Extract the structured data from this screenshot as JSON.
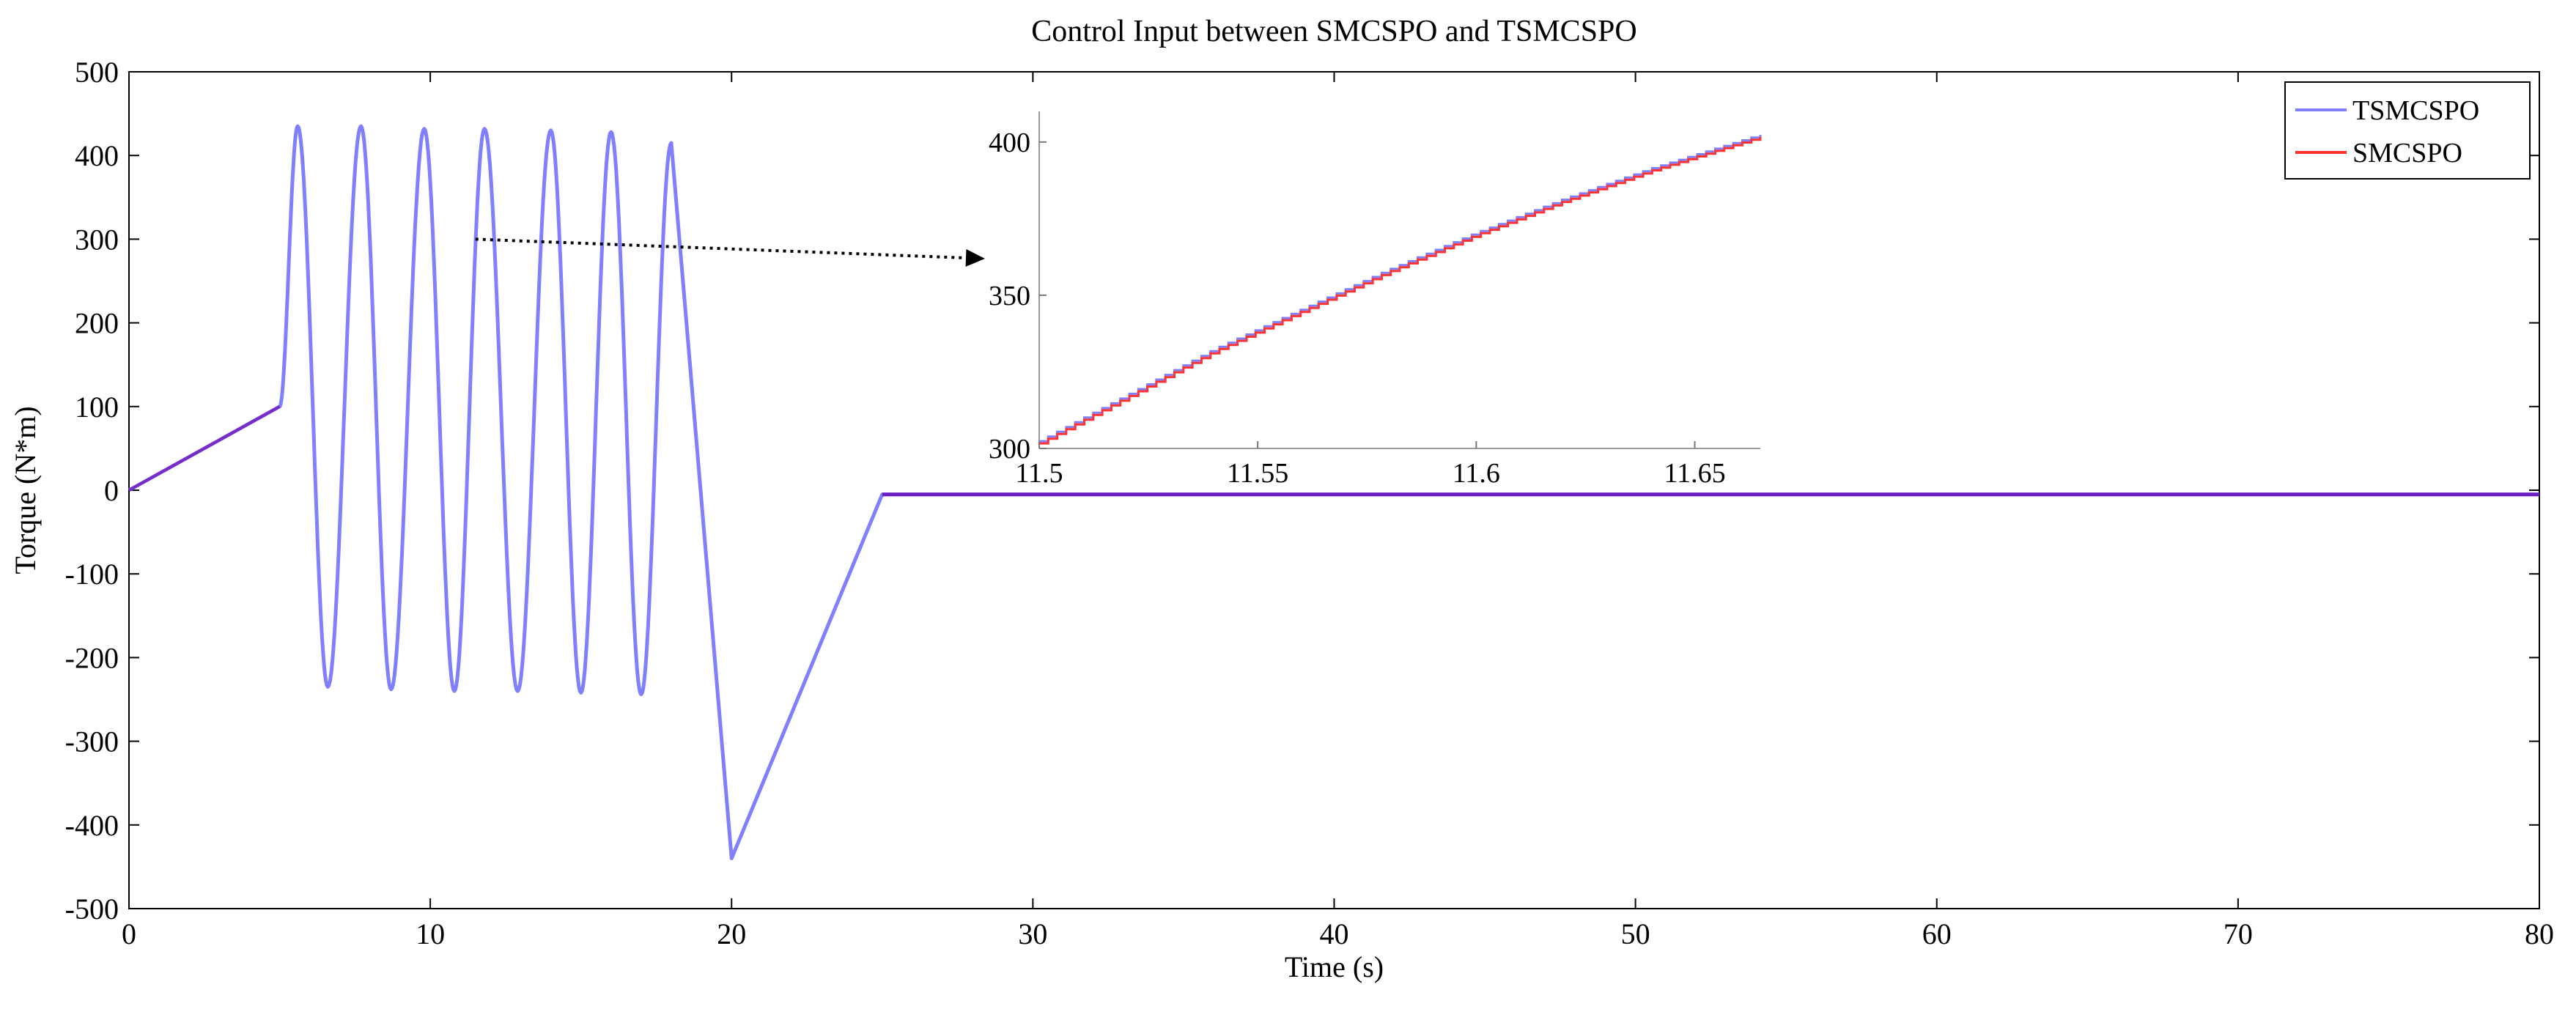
{
  "chart_data": [
    {
      "type": "line",
      "title": "Control Input between SMCSPO and TSMCSPO",
      "xlabel": "Time (s)",
      "ylabel": "Torque (N*m)",
      "xlim": [
        0,
        80
      ],
      "ylim": [
        -500,
        500
      ],
      "xticks": [
        0,
        10,
        20,
        30,
        40,
        50,
        60,
        70,
        80
      ],
      "yticks": [
        -500,
        -400,
        -300,
        -200,
        -100,
        0,
        100,
        200,
        300,
        400,
        500
      ],
      "grid": false,
      "legend_position": "top-right",
      "series": [
        {
          "name": "TSMCSPO",
          "color": "#8080ff",
          "x": [
            0,
            5,
            5,
            25,
            80
          ],
          "y": [
            0,
            100,
            100,
            -5,
            -5
          ],
          "oscillation_segment": {
            "x": [
              5,
              18.5
            ],
            "center": 100,
            "amplitude_up": 335,
            "amplitude_down": -340,
            "cycles": 6.5
          },
          "drop_segment": {
            "x": [
              18.5,
              20,
              25
            ],
            "y": [
              410,
              -440,
              -5
            ]
          }
        },
        {
          "name": "SMCSPO",
          "color": "#ff3333",
          "x": [
            0,
            5,
            5,
            25,
            80
          ],
          "y": [
            0,
            100,
            100,
            -5,
            -5
          ],
          "oscillation_segment": {
            "x": [
              5,
              18.5
            ],
            "center": 100,
            "amplitude_up": 335,
            "amplitude_down": -340,
            "cycles": 6.5
          },
          "drop_segment": {
            "x": [
              18.5,
              20,
              25
            ],
            "y": [
              410,
              -440,
              -5
            ]
          }
        }
      ],
      "peaks": [
        {
          "x": 5.6,
          "y": 435
        },
        {
          "x": 6.6,
          "y": -235
        },
        {
          "x": 7.7,
          "y": 435
        },
        {
          "x": 8.7,
          "y": -238
        },
        {
          "x": 9.8,
          "y": 432
        },
        {
          "x": 10.8,
          "y": -240
        },
        {
          "x": 11.8,
          "y": 432
        },
        {
          "x": 12.9,
          "y": -240
        },
        {
          "x": 14.0,
          "y": 430
        },
        {
          "x": 15.0,
          "y": -242
        },
        {
          "x": 16.0,
          "y": 428
        },
        {
          "x": 17.0,
          "y": -244
        },
        {
          "x": 18.0,
          "y": 415
        },
        {
          "x": 20.0,
          "y": -440
        }
      ]
    },
    {
      "type": "line",
      "title": "",
      "inset": true,
      "xlim": [
        11.5,
        11.665
      ],
      "ylim": [
        300,
        410
      ],
      "xticks": [
        11.5,
        11.55,
        11.6,
        11.65
      ],
      "xtick_labels": [
        "11.5",
        "11.55",
        "11.6",
        "11.65"
      ],
      "yticks": [
        300,
        350,
        400
      ],
      "series": [
        {
          "name": "TSMCSPO",
          "color": "#8080ff",
          "x": [
            11.5,
            11.52,
            11.54,
            11.56,
            11.58,
            11.6,
            11.62,
            11.64,
            11.665
          ],
          "y": [
            302,
            317,
            332,
            345,
            358,
            370,
            381,
            391,
            402
          ]
        },
        {
          "name": "SMCSPO",
          "color": "#ff3333",
          "x": [
            11.5,
            11.52,
            11.54,
            11.56,
            11.58,
            11.6,
            11.62,
            11.64,
            11.665
          ],
          "y": [
            302,
            317,
            332,
            345,
            358,
            370,
            381,
            391,
            402
          ]
        }
      ]
    }
  ]
}
